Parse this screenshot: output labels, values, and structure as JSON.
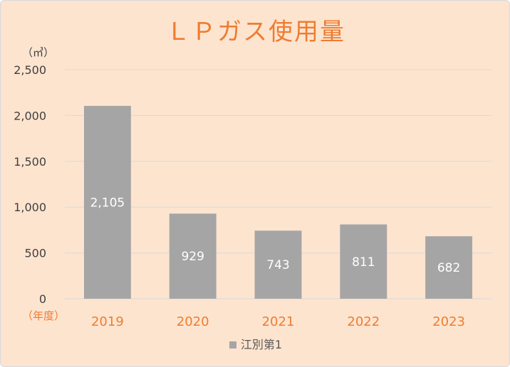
{
  "chart_data": {
    "type": "bar",
    "title": "ＬＰガス使用量",
    "ylabel": "（㎥）",
    "xlabel": "（年度）",
    "categories": [
      "2019",
      "2020",
      "2021",
      "2022",
      "2023"
    ],
    "series": [
      {
        "name": "江別第1",
        "values": [
          2105,
          929,
          743,
          811,
          682
        ],
        "color": "#a5a5a5"
      }
    ],
    "data_labels": [
      "2,105",
      "929",
      "743",
      "811",
      "682"
    ],
    "ylim": [
      0,
      2500
    ],
    "yticks": [
      0,
      500,
      1000,
      1500,
      2000,
      2500
    ],
    "ytick_labels": [
      "0",
      "500",
      "1,000",
      "1,500",
      "2,000",
      "2,500"
    ],
    "grid": true,
    "legend_position": "bottom",
    "colors": {
      "background": "#fde4cf",
      "title": "#ed7d31",
      "x_tick_labels": "#ed7d31",
      "y_tick_labels": "#404040",
      "gridline": "#d9d9d9",
      "bar": "#a5a5a5",
      "data_label": "#ffffff"
    }
  }
}
